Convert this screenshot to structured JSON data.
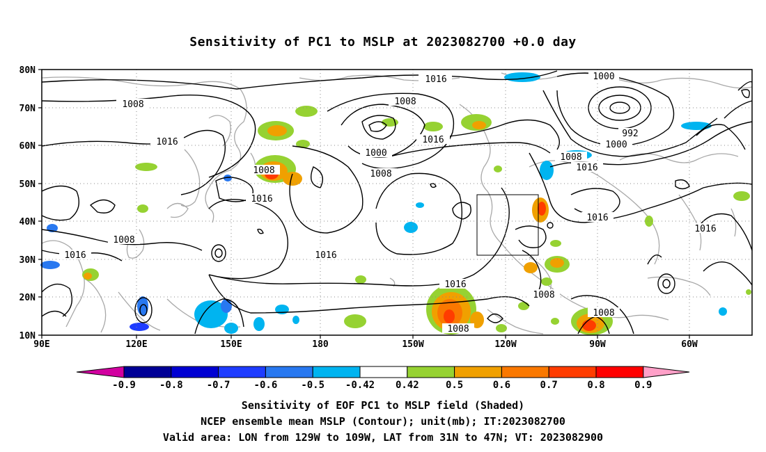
{
  "title": "Sensitivity of PC1 to MSLP at 2023082700 +0.0 day",
  "lat_labels": [
    "80N",
    "70N",
    "60N",
    "50N",
    "40N",
    "30N",
    "20N",
    "10N"
  ],
  "lon_labels": [
    "90E",
    "120E",
    "150E",
    "180",
    "150W",
    "120W",
    "90W",
    "60W"
  ],
  "contour_labels": {
    "c1016a": "1016",
    "c1008a": "1008",
    "c1000a": "1000",
    "c1008b": "1008",
    "c1016b": "1016",
    "c1000b": "1000",
    "c992": "992",
    "c1000c": "1000",
    "c1008c": "1008",
    "c1016c": "1016",
    "c1016d": "1016",
    "c1016e": "1016",
    "c1008d": "1008",
    "c1016f": "1016",
    "c1008e": "1008",
    "c1016g": "1016",
    "c1016h": "1016",
    "c1016i": "1016",
    "c1008f": "1008",
    "c1008g": "1008",
    "c1008h": "1008",
    "c1008i": "1008",
    "c1016j": "1016"
  },
  "colorbar": {
    "labels": [
      "-0.9",
      "-0.8",
      "-0.7",
      "-0.6",
      "-0.5",
      "-0.42",
      "0.42",
      "0.5",
      "0.6",
      "0.7",
      "0.8",
      "0.9"
    ],
    "colors": [
      "#000096",
      "#0000d2",
      "#1e3cff",
      "#2878f0",
      "#00b4f0",
      "#ffffff",
      "#96d232",
      "#f0a000",
      "#fa7800",
      "#ff3c00",
      "#ff0000"
    ],
    "low_end": "#d200a0",
    "high_end": "#ffa0c8"
  },
  "caption_line1": "Sensitivity of EOF PC1 to MSLP field (Shaded)",
  "caption_line2": "NCEP ensemble mean MSLP (Contour); unit(mb); IT:2023082700",
  "caption_line3": "Valid area: LON from 129W to 109W, LAT from 31N to 47N; VT: 2023082900"
}
